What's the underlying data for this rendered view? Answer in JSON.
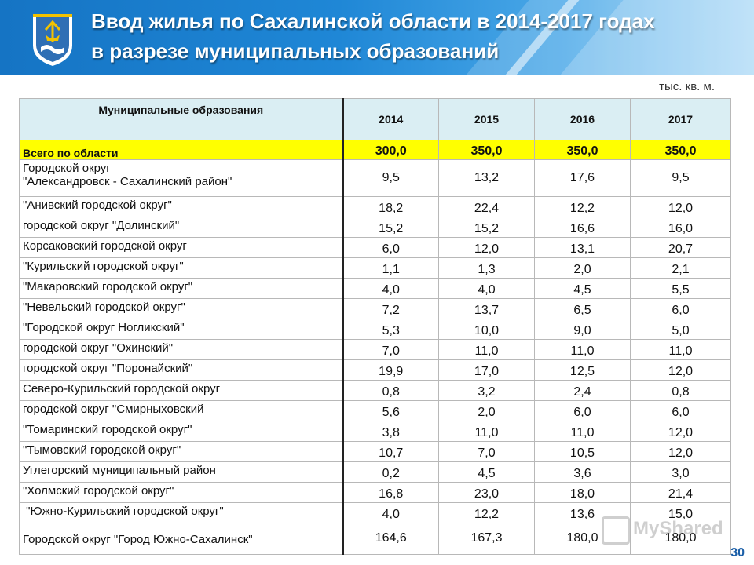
{
  "header": {
    "title_line1": "Ввод жилья по Сахалинской области в 2014-2017 годах",
    "title_line2": "в разрезе муниципальных образований"
  },
  "units": "тыс. кв. м.",
  "table": {
    "col_header": "Муниципальные образования",
    "years": [
      "2014",
      "2015",
      "2016",
      "2017"
    ],
    "total": {
      "name": "Всего по области",
      "values": [
        "300,0",
        "350,0",
        "350,0",
        "350,0"
      ]
    },
    "rows": [
      {
        "name": "Городской округ",
        "name2": "\"Александровск - Сахалинский район\"",
        "values": [
          "9,5",
          "13,2",
          "17,6",
          "9,5"
        ]
      },
      {
        "name": "\"Анивский городской округ\"",
        "values": [
          "18,2",
          "22,4",
          "12,2",
          "12,0"
        ]
      },
      {
        "name": "городской округ \"Долинский\"",
        "values": [
          "15,2",
          "15,2",
          "16,6",
          "16,0"
        ]
      },
      {
        "name": "Корсаковский городской округ",
        "values": [
          "6,0",
          "12,0",
          "13,1",
          "20,7"
        ]
      },
      {
        "name": "\"Курильский городской округ\"",
        "values": [
          "1,1",
          "1,3",
          "2,0",
          "2,1"
        ]
      },
      {
        "name": "\"Макаровский городской округ\"",
        "values": [
          "4,0",
          "4,0",
          "4,5",
          "5,5"
        ]
      },
      {
        "name": "\"Невельский городской округ\"",
        "values": [
          "7,2",
          "13,7",
          "6,5",
          "6,0"
        ]
      },
      {
        "name": "\"Городской округ Ногликский\"",
        "values": [
          "5,3",
          "10,0",
          "9,0",
          "5,0"
        ]
      },
      {
        "name": "городской округ \"Охинский\"",
        "values": [
          "7,0",
          "11,0",
          "11,0",
          "11,0"
        ]
      },
      {
        "name": "городской округ \"Поронайский\"",
        "values": [
          "19,9",
          "17,0",
          "12,5",
          "12,0"
        ]
      },
      {
        "name": "Северо-Курильский городской округ",
        "values": [
          "0,8",
          "3,2",
          "2,4",
          "0,8"
        ]
      },
      {
        "name": "городской округ \"Смирныховский",
        "values": [
          "5,6",
          "2,0",
          "6,0",
          "6,0"
        ]
      },
      {
        "name": "\"Томаринский городской округ\"",
        "values": [
          "3,8",
          "11,0",
          "11,0",
          "12,0"
        ]
      },
      {
        "name": "\"Тымовский городской округ\"",
        "values": [
          "10,7",
          "7,0",
          "10,5",
          "12,0"
        ]
      },
      {
        "name": "Углегорский муниципальный район",
        "values": [
          "0,2",
          "4,5",
          "3,6",
          "3,0"
        ]
      },
      {
        "name": "\"Холмский городской округ\"",
        "values": [
          "16,8",
          "23,0",
          "18,0",
          "21,4"
        ]
      },
      {
        "name": " \"Южно-Курильский городской округ\"",
        "values": [
          "4,0",
          "12,2",
          "13,6",
          "15,0"
        ]
      },
      {
        "name": "Городской округ \"Город Южно-Сахалинск\"",
        "values": [
          "164,6",
          "167,3",
          "180,0",
          "180,0"
        ]
      }
    ]
  },
  "watermark": "MyShared",
  "page_number": "30"
}
